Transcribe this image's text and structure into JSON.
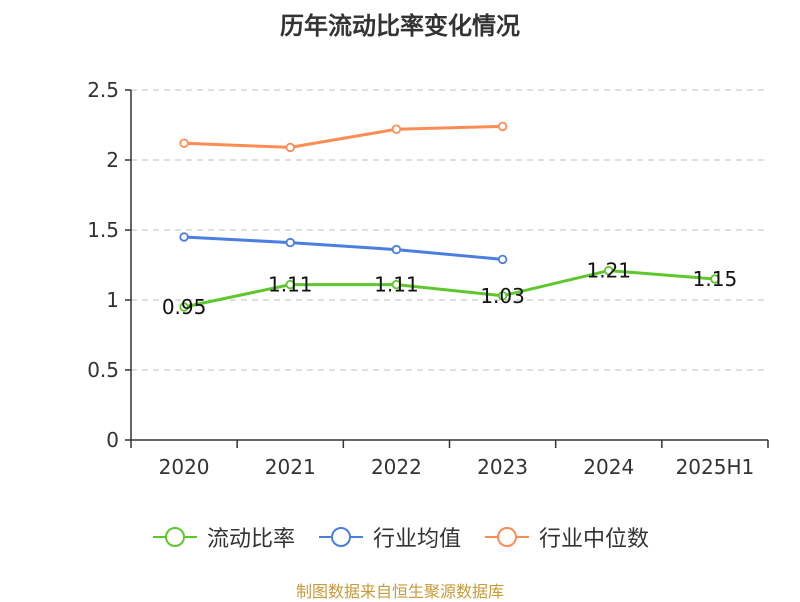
{
  "title": "历年流动比率变化情况",
  "source": "制图数据来自恒生聚源数据库",
  "colors": {
    "axis": "#333333",
    "grid": "#cccccc",
    "label": "#333333"
  },
  "chart_data": {
    "type": "line",
    "title": "历年流动比率变化情况",
    "categories": [
      "2020",
      "2021",
      "2022",
      "2023",
      "2024",
      "2025H1"
    ],
    "ylim": [
      0,
      2.5
    ],
    "yticks": [
      0,
      0.5,
      1,
      1.5,
      2,
      2.5
    ],
    "ytick_labels": [
      "0",
      "0.5",
      "1",
      "1.5",
      "2",
      "2.5"
    ],
    "grid": true,
    "legend_position": "bottom",
    "series": [
      {
        "name": "流动比率",
        "color": "#5ec72e",
        "values": [
          0.95,
          1.11,
          1.11,
          1.03,
          1.21,
          1.15
        ],
        "labels": [
          "0.95",
          "1.11",
          "1.11",
          "1.03",
          "1.21",
          "1.15"
        ]
      },
      {
        "name": "行业均值",
        "color": "#4a7fe0",
        "values": [
          1.45,
          1.41,
          1.36,
          1.29,
          null,
          null
        ]
      },
      {
        "name": "行业中位数",
        "color": "#fb8d52",
        "values": [
          2.12,
          2.09,
          2.22,
          2.24,
          null,
          null
        ]
      }
    ]
  }
}
